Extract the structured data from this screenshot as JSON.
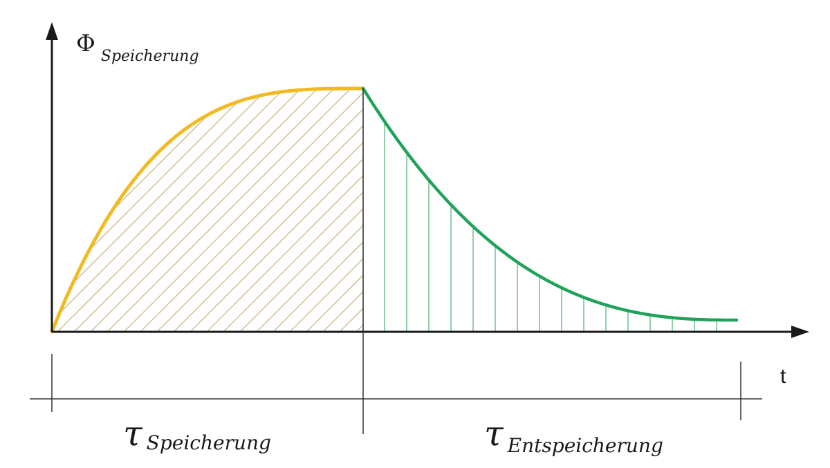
{
  "y_axis": {
    "symbol": "Φ",
    "subscript": "Speicherung"
  },
  "x_axis": {
    "label": "t"
  },
  "intervals": [
    {
      "symbol": "τ",
      "subscript": "Speicherung"
    },
    {
      "symbol": "τ",
      "subscript": "Entspeicherung"
    }
  ],
  "colors": {
    "charging_curve": "#F2BA22",
    "charging_hatch": "#C8B27A",
    "discharging_curve": "#1FA25A",
    "discharging_hatch": "#57B67E",
    "axis": "#1a1a1a"
  }
}
